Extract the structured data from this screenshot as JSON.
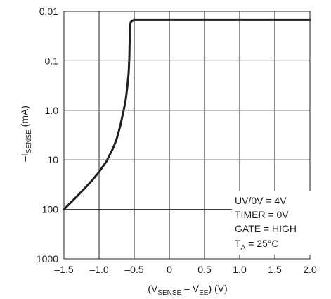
{
  "chart_data": {
    "type": "line",
    "title": "",
    "xlabel": {
      "main": "(V",
      "sub1": "SENSE",
      "mid": " – V",
      "sub2": "EE",
      "tail": ") (V)"
    },
    "ylabel": {
      "pre": "–I",
      "sub": "SENSE",
      "post": " (mA)"
    },
    "x_ticks": [
      "–1.5",
      "–1.0",
      "–0.5",
      "0",
      "0.5",
      "1.0",
      "1.5",
      "2.0"
    ],
    "x_tick_values": [
      -1.5,
      -1.0,
      -0.5,
      0,
      0.5,
      1.0,
      1.5,
      2.0
    ],
    "y_ticks": [
      "0.01",
      "0.1",
      "1.0",
      "10",
      "100",
      "1000"
    ],
    "y_tick_values": [
      0.01,
      0.1,
      1,
      10,
      100,
      1000
    ],
    "y_scale": "log",
    "y_inverted": true,
    "xlim": [
      -1.5,
      2.0
    ],
    "ylim": [
      0.01,
      1000
    ],
    "grid": true,
    "series": [
      {
        "x": [
          -1.5,
          -1.4,
          -1.3,
          -1.2,
          -1.1,
          -1.0,
          -0.9,
          -0.8,
          -0.75,
          -0.7,
          -0.65,
          -0.62,
          -0.6,
          -0.58,
          -0.57,
          -0.565,
          -0.56,
          -0.55,
          -0.53,
          -0.5,
          0,
          0.5,
          1.0,
          1.5,
          2.0
        ],
        "y": [
          100,
          72,
          52,
          37,
          26,
          17.5,
          11,
          5.8,
          3.8,
          2.1,
          1.0,
          0.6,
          0.35,
          0.18,
          0.09,
          0.04,
          0.02,
          0.0165,
          0.0155,
          0.015,
          0.015,
          0.015,
          0.015,
          0.015,
          0.015
        ]
      }
    ],
    "annotations": [
      {
        "text": "UV/0V = 4V"
      },
      {
        "text": "TIMER = 0V"
      },
      {
        "text": "GATE = HIGH"
      },
      {
        "main": "T",
        "sub": "A",
        "tail": " = 25°C"
      }
    ]
  }
}
